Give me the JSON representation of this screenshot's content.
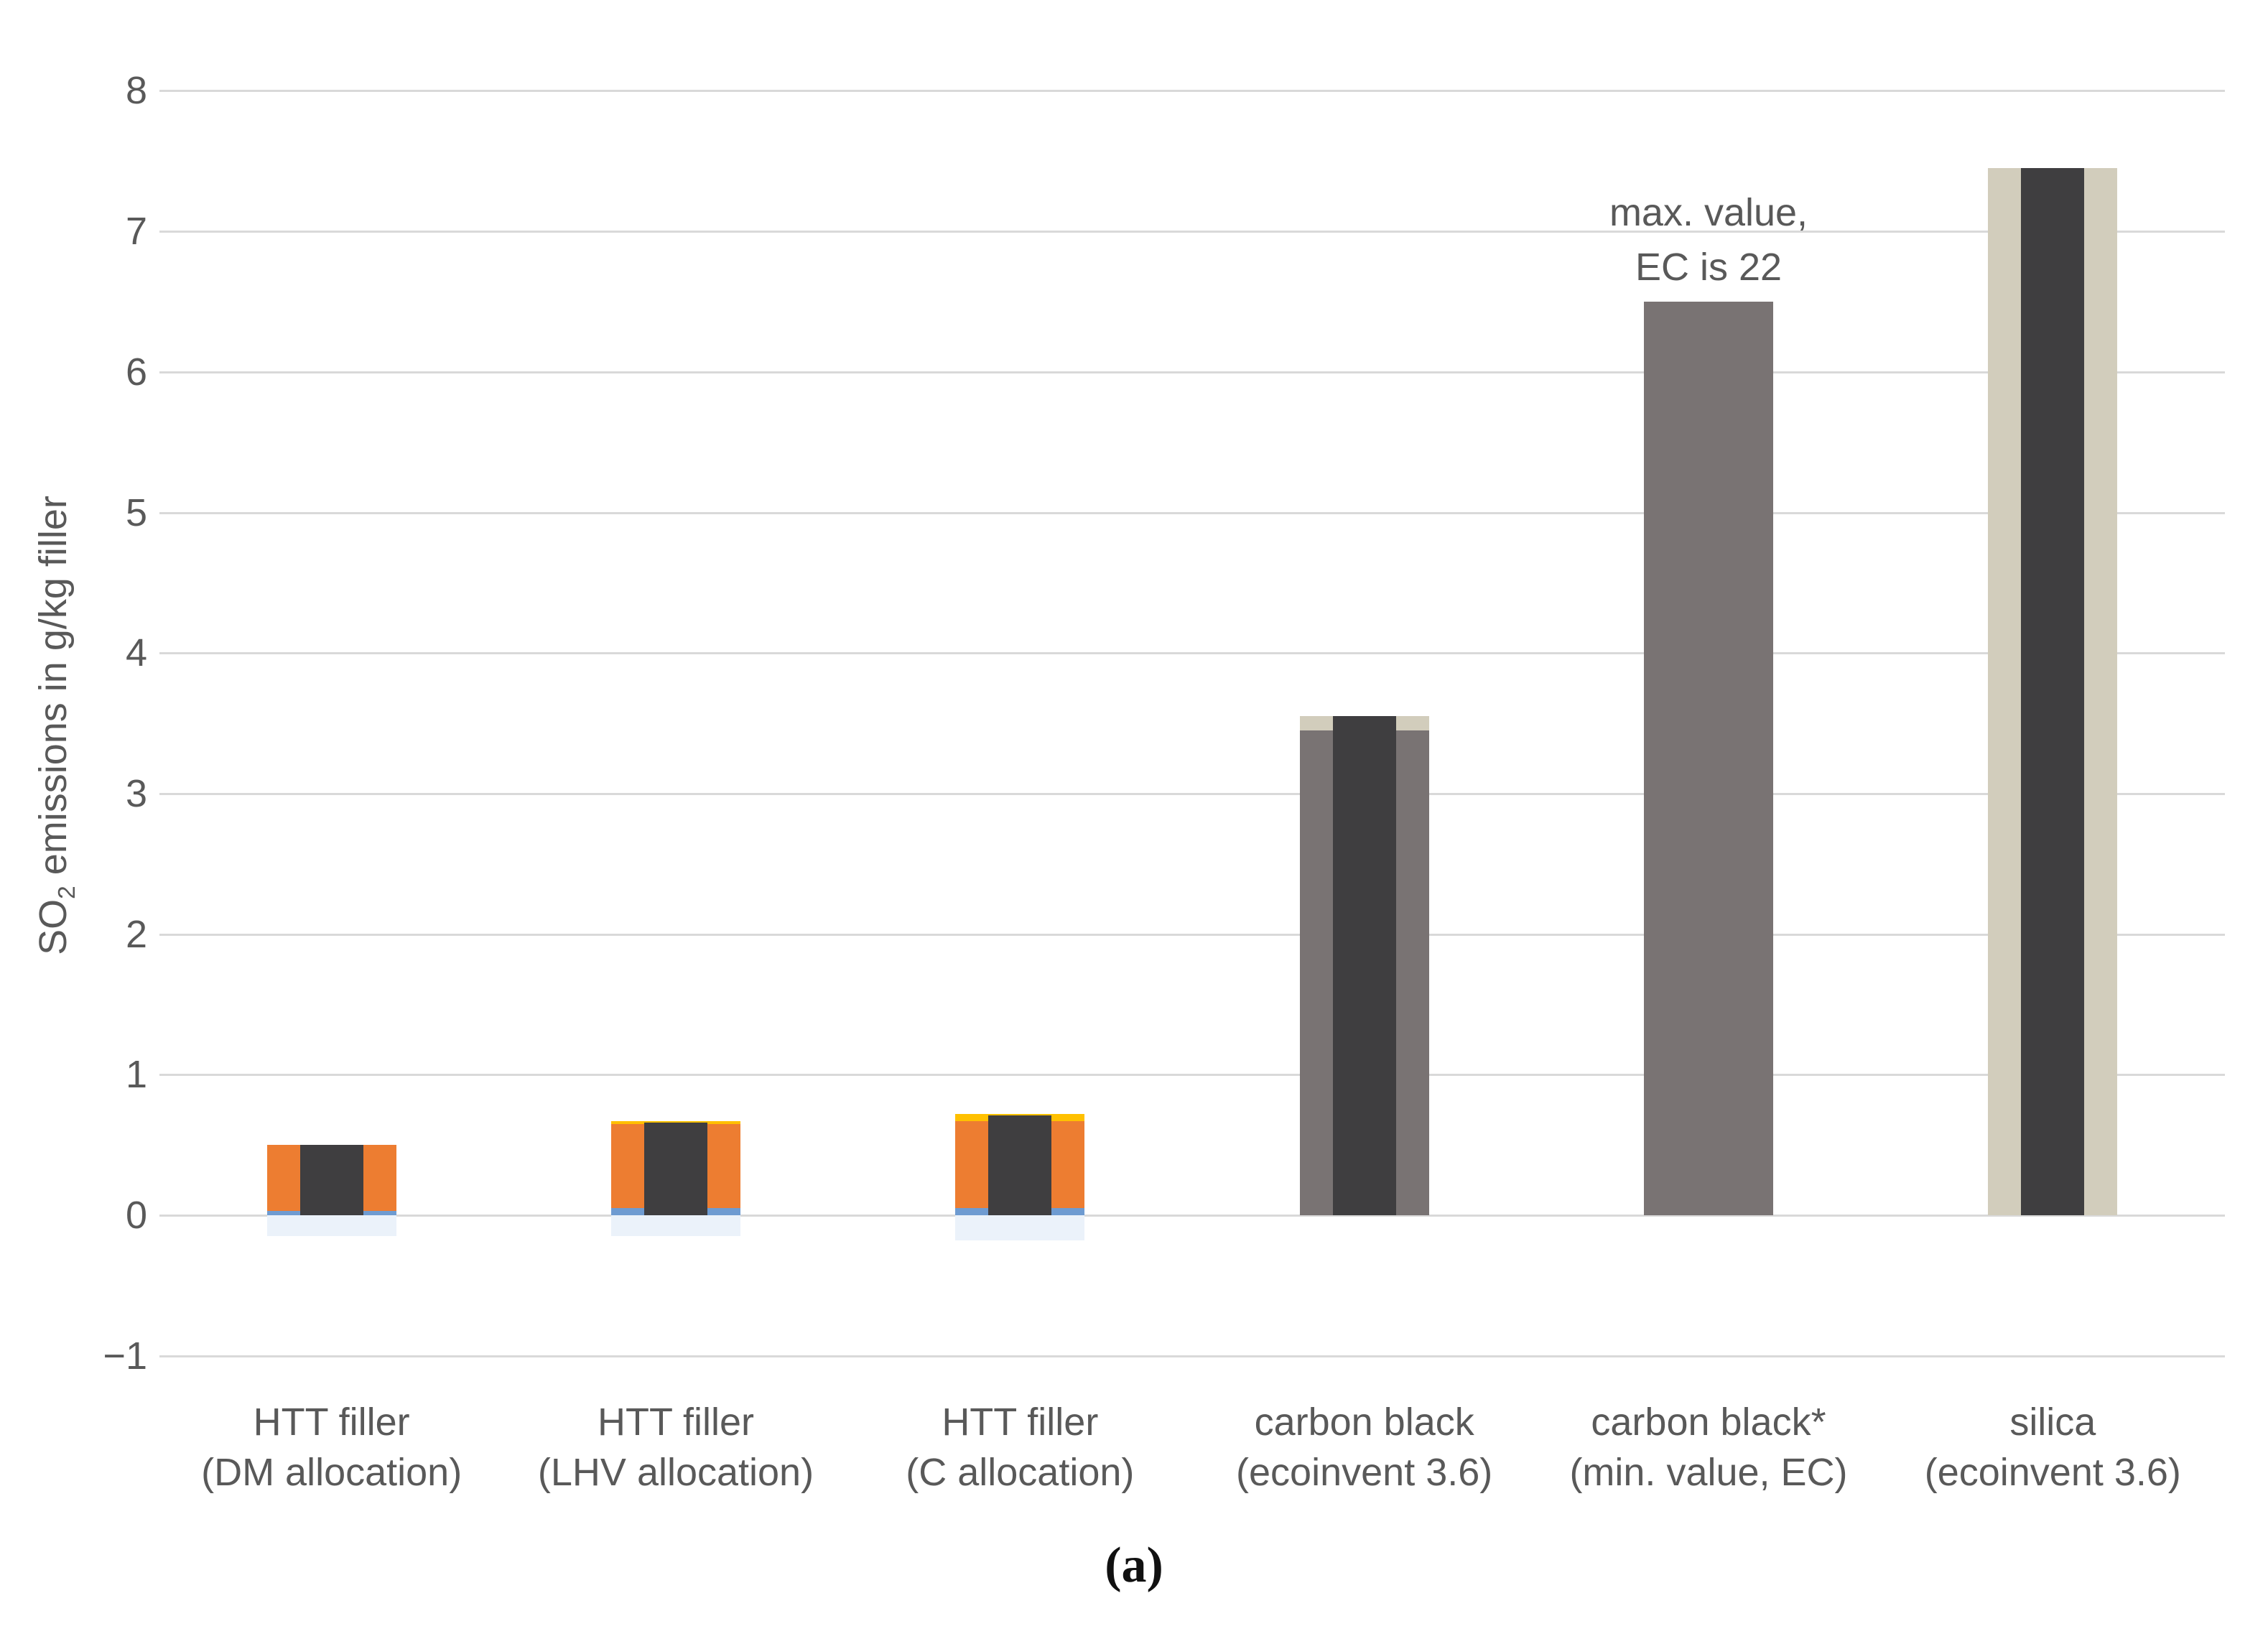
{
  "caption": "(a)",
  "chart_data": {
    "type": "bar",
    "title": "",
    "ylabel": "SO2 emissions in g/kg filler",
    "ylabel_parts": {
      "prefix": "SO",
      "sub": "2",
      "suffix": " emissions in g/kg filler"
    },
    "ylim": [
      -1,
      8
    ],
    "ytick_values": [
      8,
      7,
      6,
      5,
      4,
      3,
      2,
      1,
      0,
      -1
    ],
    "ytick_labels": [
      "8",
      "7",
      "6",
      "5",
      "4",
      "3",
      "2",
      "1",
      "0",
      "−1"
    ],
    "grid": true,
    "legend_position": "none",
    "categories": [
      [
        "HTT filler",
        "(DM allocation)"
      ],
      [
        "HTT filler",
        "(LHV allocation)"
      ],
      [
        "HTT filler",
        "(C allocation)"
      ],
      [
        "carbon black",
        "(ecoinvent 3.6)"
      ],
      [
        "carbon black*",
        "(min. value, EC)"
      ],
      [
        "silica",
        "(ecoinvent 3.6)"
      ]
    ],
    "bars": [
      {
        "name": "HTT filler (DM allocation)",
        "total": 0.5,
        "outer_segments": [
          {
            "from": -0.15,
            "to": 0,
            "color": "pale_blue"
          },
          {
            "from": 0,
            "to": 0.03,
            "color": "blue"
          },
          {
            "from": 0.03,
            "to": 0.5,
            "color": "orange"
          }
        ],
        "overlay_value": 0.5
      },
      {
        "name": "HTT filler (LHV allocation)",
        "total": 0.67,
        "outer_segments": [
          {
            "from": -0.15,
            "to": 0,
            "color": "pale_blue"
          },
          {
            "from": 0,
            "to": 0.05,
            "color": "blue"
          },
          {
            "from": 0.05,
            "to": 0.65,
            "color": "orange"
          },
          {
            "from": 0.65,
            "to": 0.67,
            "color": "yellow"
          }
        ],
        "overlay_value": 0.66
      },
      {
        "name": "HTT filler (C allocation)",
        "total": 0.72,
        "outer_segments": [
          {
            "from": -0.18,
            "to": 0,
            "color": "pale_blue"
          },
          {
            "from": 0,
            "to": 0.05,
            "color": "blue"
          },
          {
            "from": 0.05,
            "to": 0.67,
            "color": "orange"
          },
          {
            "from": 0.67,
            "to": 0.72,
            "color": "yellow"
          }
        ],
        "overlay_value": 0.71
      },
      {
        "name": "carbon black (ecoinvent 3.6)",
        "total": 3.55,
        "outer_segments": [
          {
            "from": 0,
            "to": 3.45,
            "color": "gray"
          },
          {
            "from": 3.45,
            "to": 3.55,
            "color": "beige"
          }
        ],
        "overlay_value": 3.55
      },
      {
        "name": "carbon black* (min. value, EC)",
        "total": 6.5,
        "outer_segments": [
          {
            "from": 0,
            "to": 6.5,
            "color": "gray"
          }
        ],
        "overlay_value": null
      },
      {
        "name": "silica (ecoinvent 3.6)",
        "total": 7.45,
        "outer_segments": [
          {
            "from": 0,
            "to": 7.45,
            "color": "beige"
          }
        ],
        "overlay_value": 7.45
      }
    ],
    "annotation": {
      "lines": [
        "max. value,",
        "EC is 22"
      ],
      "bar_index": 4
    },
    "colors": {
      "orange": "#ED7D31",
      "yellow": "#FFC000",
      "blue": "#6E9BD1",
      "pale_blue": "#EBF2FA",
      "dark": "#3F3E40",
      "gray": "#797373",
      "beige": "#D2CDBC",
      "gridline": "#D9D9D9",
      "axis_text": "#595959"
    }
  }
}
